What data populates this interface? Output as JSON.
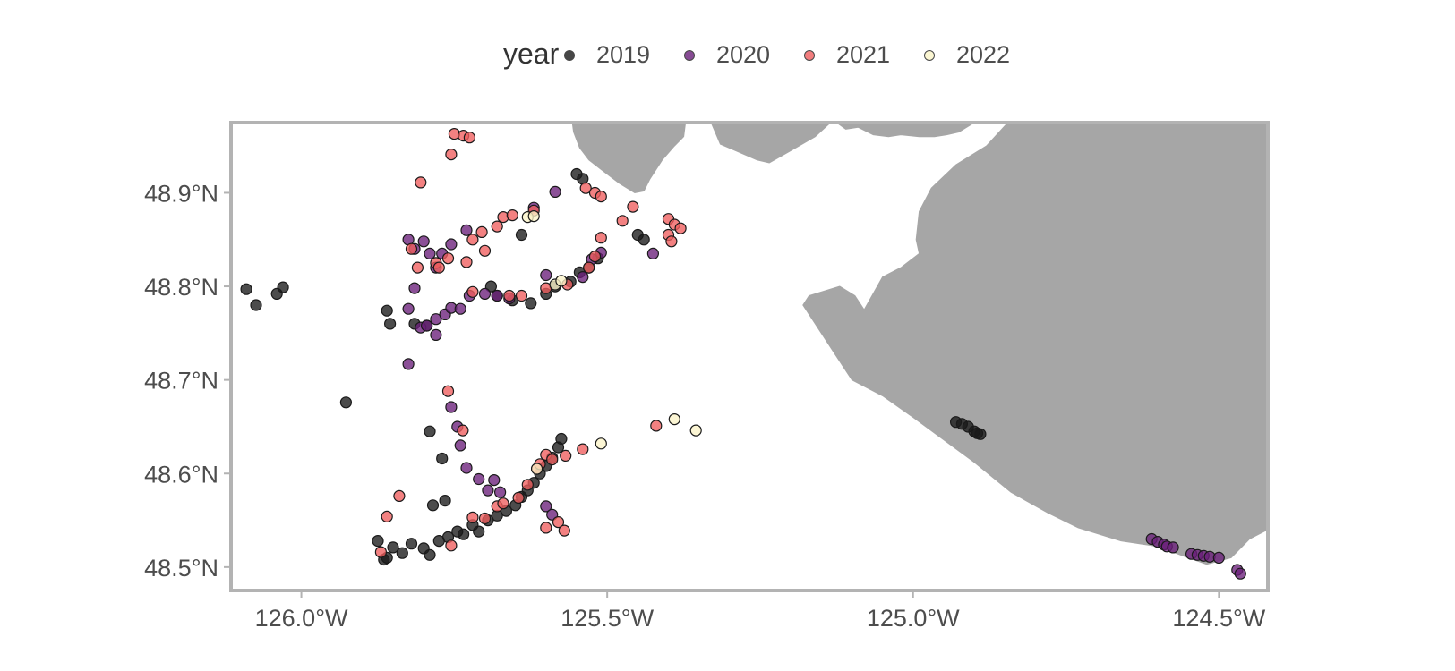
{
  "legend": {
    "title": "year",
    "items": [
      {
        "label": "2019",
        "color": "#1a1a1a"
      },
      {
        "label": "2020",
        "color": "#6a1f7a"
      },
      {
        "label": "2021",
        "color": "#f05d5e"
      },
      {
        "label": "2022",
        "color": "#fbf4c8"
      }
    ]
  },
  "axes": {
    "x_ticks": [
      {
        "value": -126.0,
        "label": "126.0°W"
      },
      {
        "value": -125.5,
        "label": "125.5°W"
      },
      {
        "value": -125.0,
        "label": "125.0°W"
      },
      {
        "value": -124.5,
        "label": "124.5°W"
      }
    ],
    "y_ticks": [
      {
        "value": 48.9,
        "label": "48.9°N"
      },
      {
        "value": 48.8,
        "label": "48.8°N"
      },
      {
        "value": 48.7,
        "label": "48.7°N"
      },
      {
        "value": 48.6,
        "label": "48.6°N"
      },
      {
        "value": 48.5,
        "label": "48.5°N"
      }
    ]
  },
  "colors": {
    "land": "#a6a6a6",
    "panel_border": "#b3b3b3",
    "point_stroke": "#1a1a1a"
  },
  "chart_data": {
    "type": "scatter",
    "xlim": [
      -126.115,
      -124.42
    ],
    "ylim": [
      48.475,
      48.975
    ],
    "grid": false,
    "legend_position": "top",
    "series": [
      {
        "name": "2019",
        "color": "#1a1a1a",
        "points": [
          [
            -126.09,
            48.797
          ],
          [
            -126.074,
            48.78
          ],
          [
            -126.04,
            48.792
          ],
          [
            -126.03,
            48.799
          ],
          [
            -125.927,
            48.676
          ],
          [
            -125.86,
            48.774
          ],
          [
            -125.855,
            48.76
          ],
          [
            -125.815,
            48.76
          ],
          [
            -125.795,
            48.758
          ],
          [
            -125.79,
            48.645
          ],
          [
            -125.77,
            48.616
          ],
          [
            -125.765,
            48.571
          ],
          [
            -125.785,
            48.566
          ],
          [
            -125.875,
            48.528
          ],
          [
            -125.86,
            48.51
          ],
          [
            -125.85,
            48.521
          ],
          [
            -125.835,
            48.515
          ],
          [
            -125.82,
            48.525
          ],
          [
            -125.8,
            48.52
          ],
          [
            -125.79,
            48.513
          ],
          [
            -125.775,
            48.528
          ],
          [
            -125.76,
            48.532
          ],
          [
            -125.745,
            48.538
          ],
          [
            -125.735,
            48.535
          ],
          [
            -125.72,
            48.545
          ],
          [
            -125.71,
            48.538
          ],
          [
            -125.695,
            48.55
          ],
          [
            -125.68,
            48.555
          ],
          [
            -125.665,
            48.56
          ],
          [
            -125.65,
            48.566
          ],
          [
            -125.64,
            48.575
          ],
          [
            -125.63,
            48.582
          ],
          [
            -125.62,
            48.59
          ],
          [
            -125.61,
            48.6
          ],
          [
            -125.6,
            48.608
          ],
          [
            -125.59,
            48.617
          ],
          [
            -125.58,
            48.628
          ],
          [
            -125.575,
            48.637
          ],
          [
            -125.865,
            48.508
          ],
          [
            -125.69,
            48.8
          ],
          [
            -125.68,
            48.79
          ],
          [
            -125.655,
            48.785
          ],
          [
            -125.625,
            48.782
          ],
          [
            -125.6,
            48.792
          ],
          [
            -125.585,
            48.8
          ],
          [
            -125.56,
            48.805
          ],
          [
            -125.545,
            48.815
          ],
          [
            -125.53,
            48.82
          ],
          [
            -125.515,
            48.83
          ],
          [
            -125.55,
            48.92
          ],
          [
            -125.54,
            48.915
          ],
          [
            -125.45,
            48.855
          ],
          [
            -125.44,
            48.85
          ],
          [
            -125.64,
            48.855
          ],
          [
            -124.93,
            48.655
          ],
          [
            -124.92,
            48.653
          ],
          [
            -124.91,
            48.65
          ],
          [
            -124.9,
            48.645
          ],
          [
            -124.895,
            48.643
          ],
          [
            -124.89,
            48.642
          ]
        ]
      },
      {
        "name": "2020",
        "color": "#6a1f7a",
        "points": [
          [
            -125.825,
            48.85
          ],
          [
            -125.815,
            48.84
          ],
          [
            -125.8,
            48.848
          ],
          [
            -125.79,
            48.835
          ],
          [
            -125.77,
            48.835
          ],
          [
            -125.755,
            48.845
          ],
          [
            -125.73,
            48.86
          ],
          [
            -125.78,
            48.82
          ],
          [
            -125.815,
            48.798
          ],
          [
            -125.825,
            48.776
          ],
          [
            -125.805,
            48.756
          ],
          [
            -125.795,
            48.758
          ],
          [
            -125.78,
            48.748
          ],
          [
            -125.78,
            48.765
          ],
          [
            -125.765,
            48.77
          ],
          [
            -125.755,
            48.777
          ],
          [
            -125.74,
            48.776
          ],
          [
            -125.725,
            48.79
          ],
          [
            -125.7,
            48.792
          ],
          [
            -125.68,
            48.79
          ],
          [
            -125.66,
            48.787
          ],
          [
            -125.585,
            48.901
          ],
          [
            -125.62,
            48.884
          ],
          [
            -125.6,
            48.812
          ],
          [
            -125.54,
            48.81
          ],
          [
            -125.525,
            48.829
          ],
          [
            -125.51,
            48.836
          ],
          [
            -125.425,
            48.835
          ],
          [
            -125.825,
            48.717
          ],
          [
            -125.755,
            48.671
          ],
          [
            -125.745,
            48.65
          ],
          [
            -125.74,
            48.63
          ],
          [
            -125.73,
            48.606
          ],
          [
            -125.71,
            48.594
          ],
          [
            -125.695,
            48.582
          ],
          [
            -125.685,
            48.593
          ],
          [
            -125.675,
            48.58
          ],
          [
            -125.6,
            48.565
          ],
          [
            -125.59,
            48.556
          ],
          [
            -124.61,
            48.53
          ],
          [
            -124.6,
            48.527
          ],
          [
            -124.59,
            48.524
          ],
          [
            -124.585,
            48.522
          ],
          [
            -124.575,
            48.521
          ],
          [
            -124.545,
            48.514
          ],
          [
            -124.535,
            48.513
          ],
          [
            -124.525,
            48.512
          ],
          [
            -124.515,
            48.511
          ],
          [
            -124.5,
            48.51
          ],
          [
            -124.47,
            48.497
          ],
          [
            -124.465,
            48.493
          ]
        ]
      },
      {
        "name": "2021",
        "color": "#f05d5e",
        "points": [
          [
            -125.75,
            48.963
          ],
          [
            -125.735,
            48.961
          ],
          [
            -125.725,
            48.959
          ],
          [
            -125.755,
            48.941
          ],
          [
            -125.805,
            48.911
          ],
          [
            -125.82,
            48.84
          ],
          [
            -125.81,
            48.82
          ],
          [
            -125.78,
            48.825
          ],
          [
            -125.775,
            48.82
          ],
          [
            -125.76,
            48.83
          ],
          [
            -125.73,
            48.826
          ],
          [
            -125.72,
            48.85
          ],
          [
            -125.705,
            48.858
          ],
          [
            -125.7,
            48.838
          ],
          [
            -125.68,
            48.864
          ],
          [
            -125.67,
            48.874
          ],
          [
            -125.655,
            48.876
          ],
          [
            -125.62,
            48.881
          ],
          [
            -125.535,
            48.905
          ],
          [
            -125.52,
            48.9
          ],
          [
            -125.51,
            48.896
          ],
          [
            -125.475,
            48.87
          ],
          [
            -125.458,
            48.885
          ],
          [
            -125.51,
            48.852
          ],
          [
            -125.52,
            48.832
          ],
          [
            -125.53,
            48.82
          ],
          [
            -125.4,
            48.872
          ],
          [
            -125.39,
            48.866
          ],
          [
            -125.38,
            48.862
          ],
          [
            -125.4,
            48.855
          ],
          [
            -125.395,
            48.848
          ],
          [
            -125.72,
            48.794
          ],
          [
            -125.66,
            48.79
          ],
          [
            -125.64,
            48.79
          ],
          [
            -125.6,
            48.798
          ],
          [
            -125.565,
            48.802
          ],
          [
            -125.76,
            48.688
          ],
          [
            -125.736,
            48.646
          ],
          [
            -125.86,
            48.554
          ],
          [
            -125.84,
            48.576
          ],
          [
            -125.87,
            48.516
          ],
          [
            -125.755,
            48.523
          ],
          [
            -125.72,
            48.553
          ],
          [
            -125.7,
            48.552
          ],
          [
            -125.68,
            48.565
          ],
          [
            -125.67,
            48.568
          ],
          [
            -125.645,
            48.574
          ],
          [
            -125.63,
            48.588
          ],
          [
            -125.615,
            48.605
          ],
          [
            -125.61,
            48.61
          ],
          [
            -125.6,
            48.62
          ],
          [
            -125.59,
            48.615
          ],
          [
            -125.568,
            48.619
          ],
          [
            -125.54,
            48.626
          ],
          [
            -125.6,
            48.542
          ],
          [
            -125.58,
            48.548
          ],
          [
            -125.57,
            48.539
          ],
          [
            -125.42,
            48.651
          ]
        ]
      },
      {
        "name": "2022",
        "color": "#fbf4c8",
        "points": [
          [
            -125.51,
            48.632
          ],
          [
            -125.39,
            48.658
          ],
          [
            -125.355,
            48.646
          ],
          [
            -125.63,
            48.874
          ],
          [
            -125.62,
            48.875
          ],
          [
            -125.585,
            48.802
          ],
          [
            -125.575,
            48.806
          ],
          [
            -125.615,
            48.605
          ]
        ]
      }
    ]
  },
  "map_data": {
    "land_polygons": [
      {
        "name": "headland-north-1",
        "coords": [
          [
            -125.557,
            48.975
          ],
          [
            -125.555,
            48.965
          ],
          [
            -125.545,
            48.948
          ],
          [
            -125.53,
            48.935
          ],
          [
            -125.51,
            48.925
          ],
          [
            -125.48,
            48.91
          ],
          [
            -125.455,
            48.9
          ],
          [
            -125.44,
            48.902
          ],
          [
            -125.43,
            48.915
          ],
          [
            -125.41,
            48.935
          ],
          [
            -125.39,
            48.95
          ],
          [
            -125.375,
            48.96
          ],
          [
            -125.372,
            48.975
          ]
        ]
      },
      {
        "name": "headland-north-2",
        "coords": [
          [
            -125.33,
            48.975
          ],
          [
            -125.315,
            48.952
          ],
          [
            -125.29,
            48.945
          ],
          [
            -125.255,
            48.935
          ],
          [
            -125.235,
            48.932
          ],
          [
            -125.2,
            48.945
          ],
          [
            -125.16,
            48.96
          ],
          [
            -125.135,
            48.975
          ]
        ]
      },
      {
        "name": "headland-north-3",
        "coords": [
          [
            -125.125,
            48.975
          ],
          [
            -125.11,
            48.968
          ],
          [
            -125.09,
            48.97
          ],
          [
            -125.065,
            48.962
          ],
          [
            -125.04,
            48.96
          ],
          [
            -125.02,
            48.962
          ],
          [
            -124.99,
            48.96
          ],
          [
            -124.965,
            48.96
          ],
          [
            -124.945,
            48.962
          ],
          [
            -124.925,
            48.965
          ],
          [
            -124.9,
            48.975
          ]
        ]
      },
      {
        "name": "mainland",
        "coords": [
          [
            -124.845,
            48.975
          ],
          [
            -124.88,
            48.95
          ],
          [
            -124.93,
            48.93
          ],
          [
            -124.97,
            48.905
          ],
          [
            -124.99,
            48.88
          ],
          [
            -124.995,
            48.85
          ],
          [
            -124.99,
            48.835
          ],
          [
            -125.02,
            48.82
          ],
          [
            -125.05,
            48.81
          ],
          [
            -125.08,
            48.775
          ],
          [
            -125.095,
            48.79
          ],
          [
            -125.12,
            48.8
          ],
          [
            -125.17,
            48.79
          ],
          [
            -125.18,
            48.78
          ],
          [
            -125.16,
            48.76
          ],
          [
            -125.13,
            48.73
          ],
          [
            -125.1,
            48.7
          ],
          [
            -125.05,
            48.683
          ],
          [
            -125.0,
            48.66
          ],
          [
            -124.95,
            48.636
          ],
          [
            -124.9,
            48.612
          ],
          [
            -124.84,
            48.58
          ],
          [
            -124.78,
            48.558
          ],
          [
            -124.73,
            48.542
          ],
          [
            -124.66,
            48.528
          ],
          [
            -124.6,
            48.522
          ],
          [
            -124.555,
            48.511
          ],
          [
            -124.52,
            48.503
          ],
          [
            -124.48,
            48.51
          ],
          [
            -124.45,
            48.53
          ],
          [
            -124.42,
            48.54
          ],
          [
            -124.42,
            48.975
          ]
        ]
      }
    ]
  }
}
